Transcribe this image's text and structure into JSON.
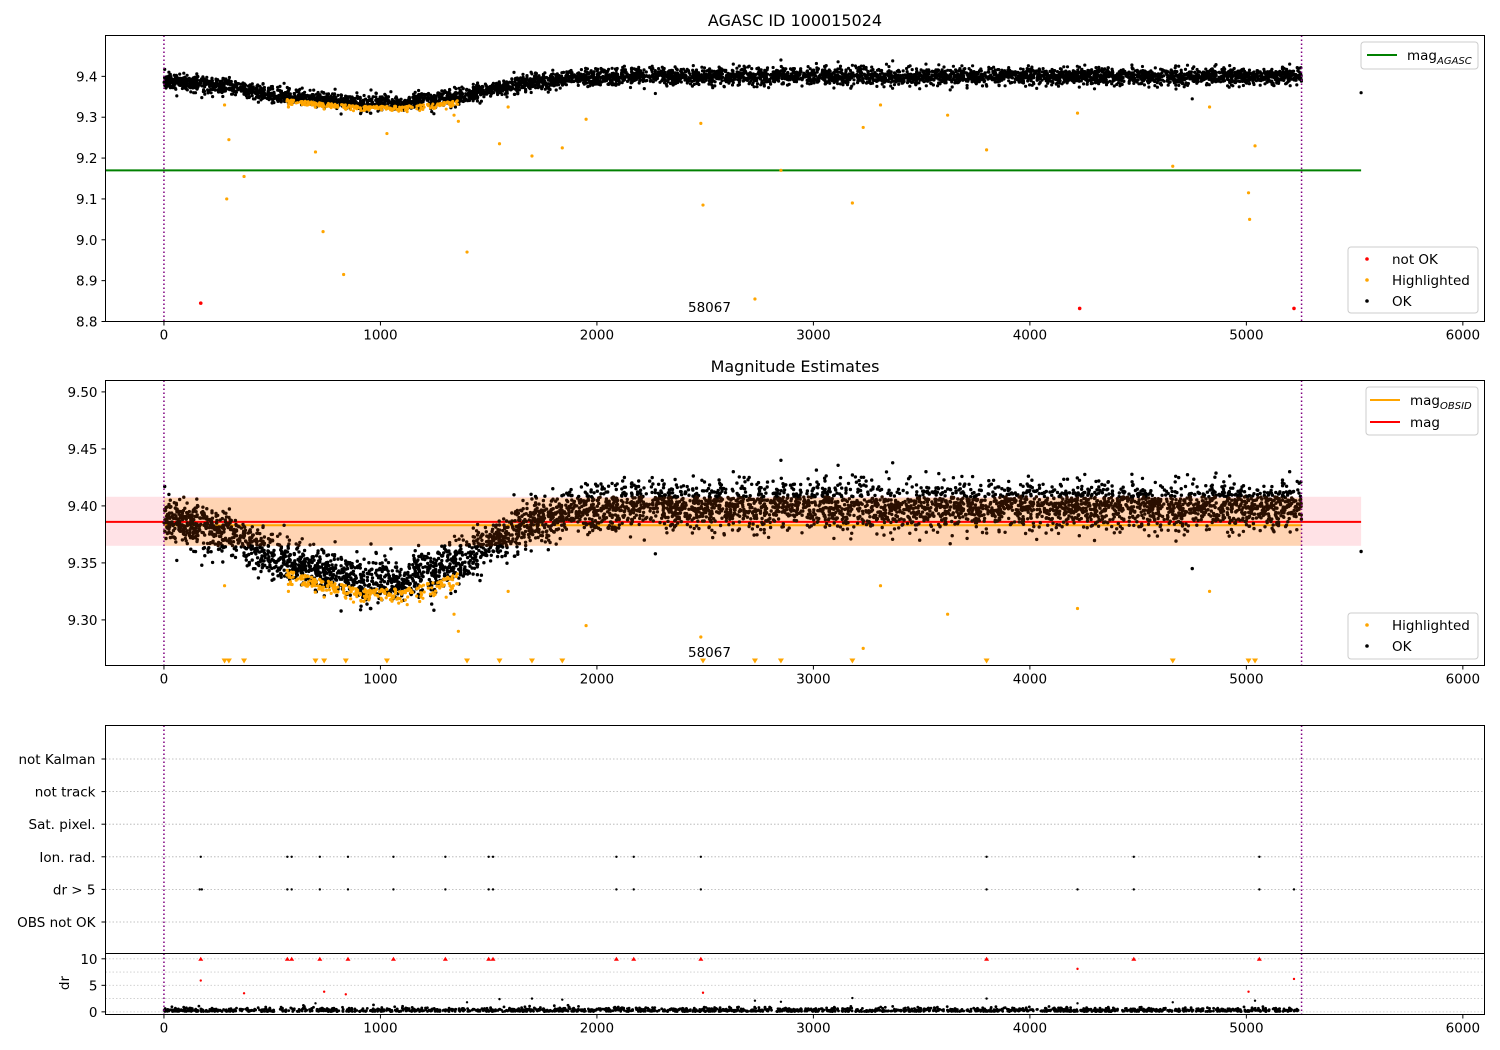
{
  "chart_data": [
    {
      "type": "scatter",
      "title": "AGASC ID 100015024",
      "xlim": [
        -270,
        6100
      ],
      "ylim": [
        8.8,
        9.5
      ],
      "xticks": [
        "0",
        "1000",
        "2000",
        "3000",
        "4000",
        "5000",
        "6000"
      ],
      "yticks": [
        "8.8",
        "8.9",
        "9.0",
        "9.1",
        "9.2",
        "9.3",
        "9.4"
      ],
      "vlines": [
        0,
        5255
      ],
      "annotation": "58067",
      "annotation_x": 2520,
      "hlines": [
        {
          "name": "mag_AGASC",
          "value": 9.17,
          "x": [
            -270,
            5530
          ],
          "color": "#008000"
        }
      ],
      "ok_trend": [
        [
          0,
          9.39
        ],
        [
          300,
          9.375
        ],
        [
          500,
          9.355
        ],
        [
          700,
          9.345
        ],
        [
          900,
          9.335
        ],
        [
          1100,
          9.335
        ],
        [
          1300,
          9.345
        ],
        [
          1500,
          9.365
        ],
        [
          1700,
          9.385
        ],
        [
          1900,
          9.395
        ],
        [
          2200,
          9.4
        ],
        [
          5255,
          9.4
        ]
      ],
      "ok_scatter_sd": 0.01,
      "ok_point_count": 5200,
      "ok_outliers": [
        [
          2850,
          9.44
        ],
        [
          2630,
          9.43
        ],
        [
          4750,
          9.345
        ],
        [
          5200,
          9.43
        ],
        [
          3520,
          9.43
        ],
        [
          2270,
          9.358
        ],
        [
          5530,
          9.36
        ]
      ],
      "highlighted": [
        [
          280,
          9.33
        ],
        [
          290,
          9.1
        ],
        [
          300,
          9.245
        ],
        [
          370,
          9.155
        ],
        [
          575,
          9.325
        ],
        [
          700,
          9.215
        ],
        [
          735,
          9.02
        ],
        [
          740,
          9.32
        ],
        [
          830,
          8.915
        ],
        [
          1030,
          9.26
        ],
        [
          1340,
          9.305
        ],
        [
          1360,
          9.29
        ],
        [
          1400,
          8.97
        ],
        [
          1550,
          9.235
        ],
        [
          1590,
          9.325
        ],
        [
          1700,
          9.205
        ],
        [
          1840,
          9.225
        ],
        [
          1950,
          9.295
        ],
        [
          2480,
          9.285
        ],
        [
          2490,
          9.085
        ],
        [
          2730,
          8.855
        ],
        [
          2850,
          9.17
        ],
        [
          3180,
          9.09
        ],
        [
          3230,
          9.275
        ],
        [
          3310,
          9.33
        ],
        [
          3620,
          9.305
        ],
        [
          3800,
          9.22
        ],
        [
          4220,
          9.31
        ],
        [
          4660,
          9.18
        ],
        [
          4830,
          9.325
        ],
        [
          5010,
          9.115
        ],
        [
          5015,
          9.05
        ],
        [
          5040,
          9.23
        ]
      ],
      "not_ok": [
        [
          170,
          8.845
        ],
        [
          4230,
          8.832
        ],
        [
          5220,
          8.832
        ]
      ],
      "legend": {
        "location": "lower-right",
        "entries": [
          {
            "label": "not OK",
            "color": "#ff0000"
          },
          {
            "label": "Highlighted",
            "color": "#ffa500"
          },
          {
            "label": "OK",
            "color": "#000000"
          }
        ]
      },
      "legend_top": {
        "location": "upper-right",
        "entries": [
          {
            "label": "mag",
            "sub": "AGASC",
            "color": "#008000"
          }
        ]
      }
    },
    {
      "type": "scatter",
      "title": "Magnitude Estimates",
      "xlim": [
        -270,
        6100
      ],
      "ylim": [
        9.26,
        9.51
      ],
      "xticks": [
        "0",
        "1000",
        "2000",
        "3000",
        "4000",
        "5000",
        "6000"
      ],
      "yticks": [
        "9.30",
        "9.35",
        "9.40",
        "9.45",
        "9.50"
      ],
      "vlines": [
        0,
        5255
      ],
      "annotation": "58067",
      "annotation_x": 2520,
      "bands": [
        {
          "y": [
            9.365,
            9.408
          ],
          "x": [
            -270,
            5530
          ],
          "color": "#ffb6c1",
          "opacity": 0.4
        },
        {
          "y": [
            9.365,
            9.407
          ],
          "x": [
            0,
            5255
          ],
          "color": "#ffa500",
          "opacity": 0.22
        }
      ],
      "hlines": [
        {
          "name": "mag_OBSID",
          "value": 9.383,
          "x": [
            0,
            5255
          ],
          "color": "#ffa500"
        },
        {
          "name": "mag",
          "value": 9.386,
          "x": [
            -270,
            5530
          ],
          "color": "#ff0000"
        }
      ],
      "highlighted_bottom_markers": [
        280,
        300,
        370,
        700,
        740,
        840,
        1030,
        1400,
        1550,
        1700,
        1840,
        2490,
        2730,
        2850,
        3180,
        3800,
        4660,
        5010,
        5040
      ],
      "legend": {
        "location": "lower-right",
        "entries": [
          {
            "label": "Highlighted",
            "color": "#ffa500"
          },
          {
            "label": "OK",
            "color": "#000000"
          }
        ]
      },
      "legend_top": {
        "location": "upper-right",
        "entries": [
          {
            "label": "mag",
            "sub": "OBSID",
            "color": "#ffa500"
          },
          {
            "label": "mag",
            "sub": "",
            "color": "#ff0000"
          }
        ]
      }
    },
    {
      "type": "scatter",
      "title": "",
      "xlim": [
        -270,
        6100
      ],
      "xticks": [
        "0",
        "1000",
        "2000",
        "3000",
        "4000",
        "5000",
        "6000"
      ],
      "vlines": [
        0,
        5255
      ],
      "flag_rows": [
        "not Kalman",
        "not track",
        "Sat. pixel.",
        "Ion. rad.",
        "dr > 5",
        "OBS not OK"
      ],
      "ion_rad_x": [
        170,
        570,
        590,
        720,
        850,
        1060,
        1300,
        1500,
        1520,
        2090,
        2170,
        2480,
        3800,
        4480,
        5060
      ],
      "dr5_x": [
        165,
        175,
        570,
        590,
        720,
        850,
        1060,
        1300,
        1500,
        1520,
        2090,
        2170,
        2480,
        3800,
        4220,
        4480,
        5060,
        5220
      ],
      "dr_panel": {
        "ylabel": "dr",
        "ylim": [
          -0.5,
          11
        ],
        "yticks": [
          "0",
          "5",
          "10"
        ],
        "red_dr10_x": [
          170,
          570,
          590,
          720,
          850,
          1060,
          1300,
          1500,
          1520,
          2090,
          2170,
          2480,
          3800,
          4480,
          5060
        ],
        "red_points": [
          [
            170,
            5.9
          ],
          [
            370,
            3.5
          ],
          [
            740,
            3.8
          ],
          [
            840,
            3.3
          ],
          [
            2490,
            3.6
          ],
          [
            4220,
            8.1
          ],
          [
            5010,
            3.8
          ],
          [
            5220,
            6.2
          ]
        ],
        "black_points": [
          [
            700,
            1.6
          ],
          [
            1400,
            1.8
          ],
          [
            1550,
            2.4
          ],
          [
            1700,
            2.5
          ],
          [
            1840,
            2.3
          ],
          [
            2730,
            2.1
          ],
          [
            2850,
            1.9
          ],
          [
            3180,
            2.6
          ],
          [
            3800,
            2.5
          ],
          [
            4220,
            1.6
          ],
          [
            4660,
            1.8
          ],
          [
            5040,
            2.1
          ]
        ]
      }
    }
  ]
}
